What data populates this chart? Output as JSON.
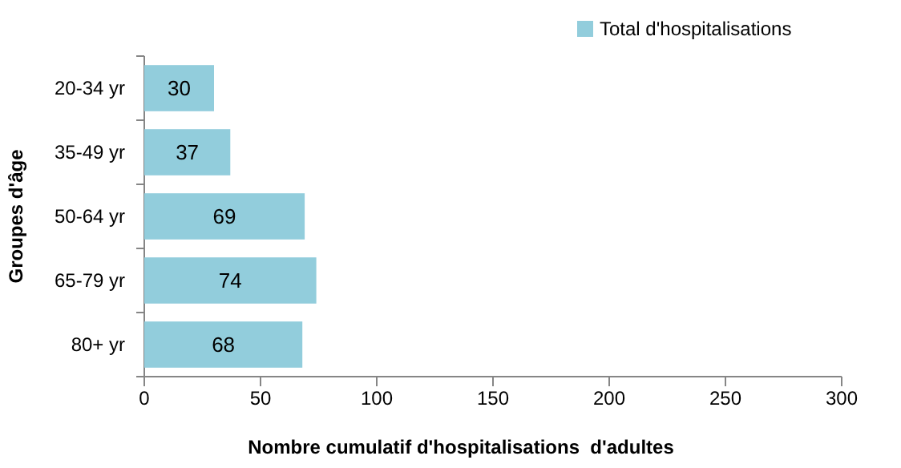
{
  "chart_data": {
    "type": "bar",
    "orientation": "horizontal",
    "categories": [
      "20-34 yr",
      "35-49 yr",
      "50-64 yr",
      "65-79 yr",
      "80+ yr"
    ],
    "series": [
      {
        "name": "Total d'hospitalisations",
        "color": "#92cddc",
        "values": [
          30,
          37,
          69,
          74,
          68
        ]
      }
    ],
    "xlim": [
      0,
      300
    ],
    "xticks": [
      0,
      50,
      100,
      150,
      200,
      250,
      300
    ],
    "xlabel": "Nombre cumulatif d'hospitalisations  d'adultes",
    "ylabel": "Groupes d'âge",
    "data_labels": true,
    "legend": "top right",
    "grid": false
  }
}
